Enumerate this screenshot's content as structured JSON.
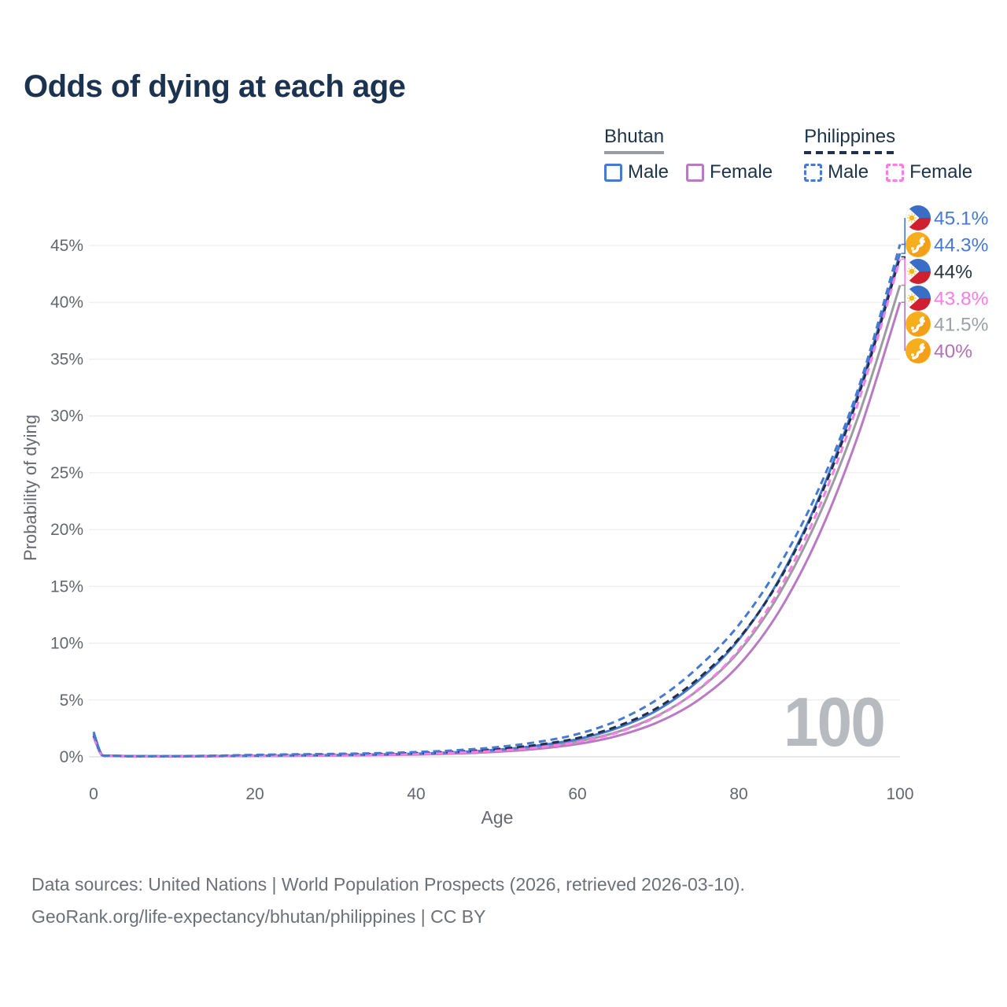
{
  "title": "Odds of dying at each age",
  "watermark": "100",
  "legend": {
    "groups": [
      {
        "name": "Bhutan",
        "line_style": "solid",
        "underline_color": "#9b9ca0",
        "items": [
          {
            "label": "Male",
            "color": "#4679d2",
            "dash": false
          },
          {
            "label": "Female",
            "color": "#ba7ac3",
            "dash": false
          }
        ]
      },
      {
        "name": "Philippines",
        "line_style": "dashed",
        "underline_color": "#22304a",
        "items": [
          {
            "label": "Male",
            "color": "#4679d2",
            "dash": true
          },
          {
            "label": "Female",
            "color": "#fb7ce4",
            "dash": true
          }
        ]
      }
    ]
  },
  "source": {
    "line1": "Data sources: United Nations | World Population Prospects (2026, retrieved 2026-03-10).",
    "line2": "GeoRank.org/life-expectancy/bhutan/philippines | CC BY"
  },
  "chart_data": {
    "type": "line",
    "title": "Odds of dying at each age",
    "xlabel": "Age",
    "ylabel": "Probability of dying",
    "xlim": [
      0,
      100
    ],
    "ylim": [
      0,
      47
    ],
    "grid": "horizontal",
    "legend_position": "top-right",
    "x_ticks": [
      {
        "value": 0,
        "label": "0"
      },
      {
        "value": 20,
        "label": "20"
      },
      {
        "value": 40,
        "label": "40"
      },
      {
        "value": 60,
        "label": "60"
      },
      {
        "value": 80,
        "label": "80"
      },
      {
        "value": 100,
        "label": "100"
      }
    ],
    "y_ticks": [
      {
        "value": 0,
        "label": "0%"
      },
      {
        "value": 5,
        "label": "5%"
      },
      {
        "value": 10,
        "label": "10%"
      },
      {
        "value": 15,
        "label": "15%"
      },
      {
        "value": 20,
        "label": "20%"
      },
      {
        "value": 25,
        "label": "25%"
      },
      {
        "value": 30,
        "label": "30%"
      },
      {
        "value": 35,
        "label": "35%"
      },
      {
        "value": 40,
        "label": "40%"
      },
      {
        "value": 45,
        "label": "45%"
      }
    ],
    "x": [
      0,
      1,
      2,
      3,
      5,
      10,
      15,
      20,
      25,
      30,
      35,
      40,
      45,
      50,
      55,
      60,
      65,
      70,
      75,
      80,
      85,
      90,
      95,
      100
    ],
    "series": [
      {
        "name": "Philippines Male",
        "country": "Philippines",
        "sex": "Male",
        "flag": "philippines",
        "color": "#4679d2",
        "dash": true,
        "end_label": "45.1%",
        "label_color": "#4679d2",
        "values": [
          2.0,
          0.16,
          0.1,
          0.08,
          0.06,
          0.06,
          0.1,
          0.17,
          0.22,
          0.26,
          0.32,
          0.42,
          0.58,
          0.85,
          1.3,
          2.0,
          3.2,
          5.1,
          7.9,
          11.6,
          16.8,
          23.7,
          32.8,
          45.1
        ]
      },
      {
        "name": "Bhutan Male",
        "country": "Bhutan",
        "sex": "Male",
        "flag": "bhutan",
        "color": "#4679d2",
        "dash": false,
        "end_label": "44.3%",
        "label_color": "#4679d2",
        "values": [
          2.2,
          0.18,
          0.11,
          0.09,
          0.06,
          0.05,
          0.07,
          0.1,
          0.13,
          0.16,
          0.21,
          0.28,
          0.41,
          0.62,
          0.98,
          1.55,
          2.55,
          4.15,
          6.7,
          10.3,
          15.6,
          22.9,
          32.4,
          44.3
        ]
      },
      {
        "name": "Philippines Both sexes",
        "country": "Philippines",
        "sex": "Both sexes",
        "flag": "philippines",
        "color": "#22304a",
        "dash": true,
        "end_label": "44%",
        "label_color": "#2b3442",
        "values": [
          1.85,
          0.14,
          0.09,
          0.07,
          0.05,
          0.05,
          0.08,
          0.13,
          0.17,
          0.2,
          0.25,
          0.33,
          0.46,
          0.68,
          1.05,
          1.65,
          2.7,
          4.35,
          6.9,
          10.4,
          15.5,
          22.7,
          32.1,
          44.0
        ]
      },
      {
        "name": "Philippines Female",
        "country": "Philippines",
        "sex": "Female",
        "flag": "philippines",
        "color": "#fb7ce4",
        "dash": true,
        "end_label": "43.8%",
        "label_color": "#fb7ce4",
        "values": [
          1.7,
          0.12,
          0.08,
          0.06,
          0.04,
          0.04,
          0.06,
          0.08,
          0.11,
          0.14,
          0.18,
          0.25,
          0.36,
          0.53,
          0.82,
          1.3,
          2.15,
          3.6,
          5.95,
          9.4,
          14.7,
          22.0,
          31.6,
          43.8
        ]
      },
      {
        "name": "Bhutan Both sexes",
        "country": "Bhutan",
        "sex": "Both sexes",
        "flag": "bhutan",
        "color": "#9b9ca0",
        "dash": false,
        "end_label": "41.5%",
        "label_color": "#9ba1a8",
        "values": [
          2.0,
          0.16,
          0.1,
          0.08,
          0.05,
          0.05,
          0.06,
          0.09,
          0.11,
          0.14,
          0.18,
          0.24,
          0.35,
          0.53,
          0.84,
          1.35,
          2.2,
          3.65,
          5.9,
          9.25,
          14.3,
          21.3,
          30.3,
          41.5
        ]
      },
      {
        "name": "Bhutan Female",
        "country": "Bhutan",
        "sex": "Female",
        "flag": "bhutan",
        "color": "#ba7ac3",
        "dash": false,
        "end_label": "40%",
        "label_color": "#b36fba",
        "values": [
          1.8,
          0.14,
          0.09,
          0.07,
          0.04,
          0.04,
          0.05,
          0.07,
          0.09,
          0.11,
          0.15,
          0.2,
          0.29,
          0.44,
          0.7,
          1.12,
          1.85,
          3.05,
          5.0,
          8.05,
          12.8,
          19.6,
          28.7,
          40.0
        ]
      }
    ]
  }
}
